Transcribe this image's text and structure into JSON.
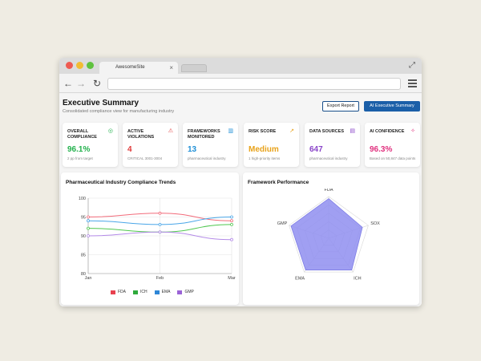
{
  "browser": {
    "tab_title": "AwesomeSite",
    "tab_close": "×",
    "url": ""
  },
  "header": {
    "title": "Executive Summary",
    "subtitle": "Consolidated compliance view for manufacturing industry",
    "export_label": "Export Report",
    "ai_label": "AI Executive Summary"
  },
  "cards": [
    {
      "label": "OVERALL COMPLIANCE",
      "value": "96.1%",
      "note": "2 pp from target",
      "color": "#22b14c",
      "icon": "target-icon"
    },
    {
      "label": "ACTIVE VIOLATIONS",
      "value": "4",
      "note": "CRITICAL 3001-3004",
      "color": "#e03a3a",
      "icon": "warning-icon"
    },
    {
      "label": "FRAMEWORKS MONITORED",
      "value": "13",
      "note": "pharmaceutical industry",
      "color": "#1f8fd6",
      "icon": "bar-chart-icon"
    },
    {
      "label": "RISK SCORE",
      "value": "Medium",
      "note": "1 high-priority items",
      "color": "#e8a21a",
      "icon": "trend-icon"
    },
    {
      "label": "DATA SOURCES",
      "value": "647",
      "note": "pharmaceutical industry",
      "color": "#8a45c9",
      "icon": "database-icon"
    },
    {
      "label": "AI CONFIDENCE",
      "value": "96.3%",
      "note": "Based on 50,847 data points",
      "color": "#e0307e",
      "icon": "sparkle-icon"
    }
  ],
  "trends": {
    "title": "Pharmaceutical Industry Compliance Trends",
    "legend": [
      "FDA",
      "ICH",
      "EMA",
      "GMP"
    ]
  },
  "framework": {
    "title": "Framework Performance"
  },
  "chart_data": [
    {
      "type": "line",
      "title": "Pharmaceutical Industry Compliance Trends",
      "categories": [
        "Jan",
        "Feb",
        "Mar"
      ],
      "ylim": [
        80,
        100
      ],
      "yticks": [
        "100",
        "95",
        "90",
        "85",
        "80"
      ],
      "grid": true,
      "legend_position": "bottom",
      "series": [
        {
          "name": "FDA",
          "values": [
            95,
            96,
            94
          ],
          "color": "#f26b7a"
        },
        {
          "name": "ICH",
          "values": [
            92,
            91,
            93
          ],
          "color": "#4fc74f"
        },
        {
          "name": "EMA",
          "values": [
            94,
            93,
            95
          ],
          "color": "#4aa6e8"
        },
        {
          "name": "GMP",
          "values": [
            90,
            91,
            89
          ],
          "color": "#b48be8"
        }
      ]
    },
    {
      "type": "radar",
      "title": "Framework Performance",
      "categories": [
        "FDA",
        "SOX",
        "ICH",
        "EMA",
        "GMP"
      ],
      "values": [
        95,
        85,
        94,
        94,
        95
      ],
      "rlim": [
        0,
        100
      ],
      "color": "#8f8ef0"
    }
  ]
}
